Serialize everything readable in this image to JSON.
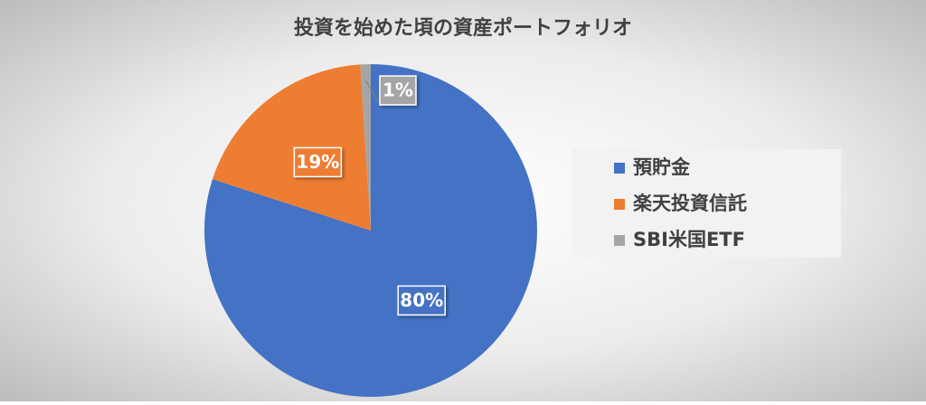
{
  "chart_data": {
    "type": "pie",
    "title": "投資を始めた頃の資産ポートフォリオ",
    "categories": [
      "預貯金",
      "楽天投資信託",
      "SBI米国ETF"
    ],
    "values": [
      80,
      19,
      1
    ],
    "value_labels": [
      "80%",
      "19%",
      "1%"
    ],
    "colors": [
      "#4472c4",
      "#ed7d31",
      "#a5a5a5"
    ],
    "legend": "right"
  }
}
